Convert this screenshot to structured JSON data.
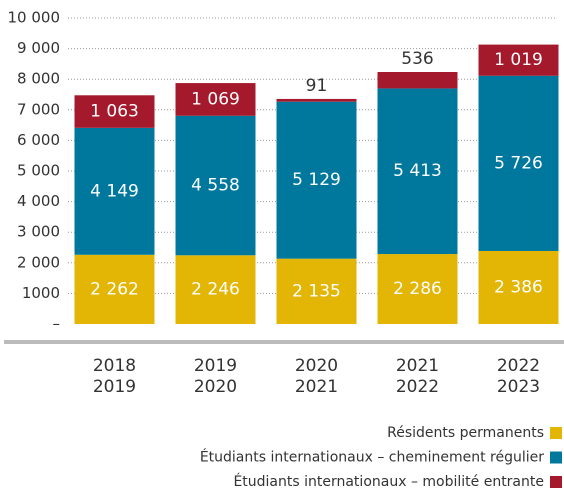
{
  "chart_data": {
    "type": "stacked_bar",
    "categories": [
      [
        "2018",
        "2019"
      ],
      [
        "2019",
        "2020"
      ],
      [
        "2020",
        "2021"
      ],
      [
        "2021",
        "2022"
      ],
      [
        "2022",
        "2023"
      ]
    ],
    "series": [
      {
        "name": "Résidents permanents",
        "color": "#e3b505",
        "values": [
          2262,
          2246,
          2135,
          2286,
          2386
        ],
        "value_labels": [
          "2 262",
          "2 246",
          "2 135",
          "2 286",
          "2 386"
        ]
      },
      {
        "name": "Étudiants internationaux – cheminement régulier",
        "color": "#00789e",
        "values": [
          4149,
          4558,
          5129,
          5413,
          5726
        ],
        "value_labels": [
          "4 149",
          "4 558",
          "5 129",
          "5 413",
          "5 726"
        ]
      },
      {
        "name": "Étudiants internationaux – mobilité entrante",
        "color": "#a5192d",
        "values": [
          1063,
          1069,
          91,
          536,
          1019
        ],
        "value_labels": [
          "1 063",
          "1 069",
          "91",
          "536",
          "1 019"
        ]
      }
    ],
    "ylim": [
      0,
      10000
    ],
    "yticks": [
      {
        "value": 0,
        "label": "–"
      },
      1000,
      {
        "value": 2000,
        "label": "2 000"
      },
      {
        "value": 3000,
        "label": "3 000"
      },
      {
        "value": 4000,
        "label": "4 000"
      },
      {
        "value": 5000,
        "label": "5 000"
      },
      {
        "value": 6000,
        "label": "6 000"
      },
      {
        "value": 7000,
        "label": "7 000"
      },
      {
        "value": 8000,
        "label": "8 000"
      },
      {
        "value": 9000,
        "label": "9 000"
      },
      {
        "value": 10000,
        "label": "10 000"
      }
    ],
    "grid": true
  }
}
